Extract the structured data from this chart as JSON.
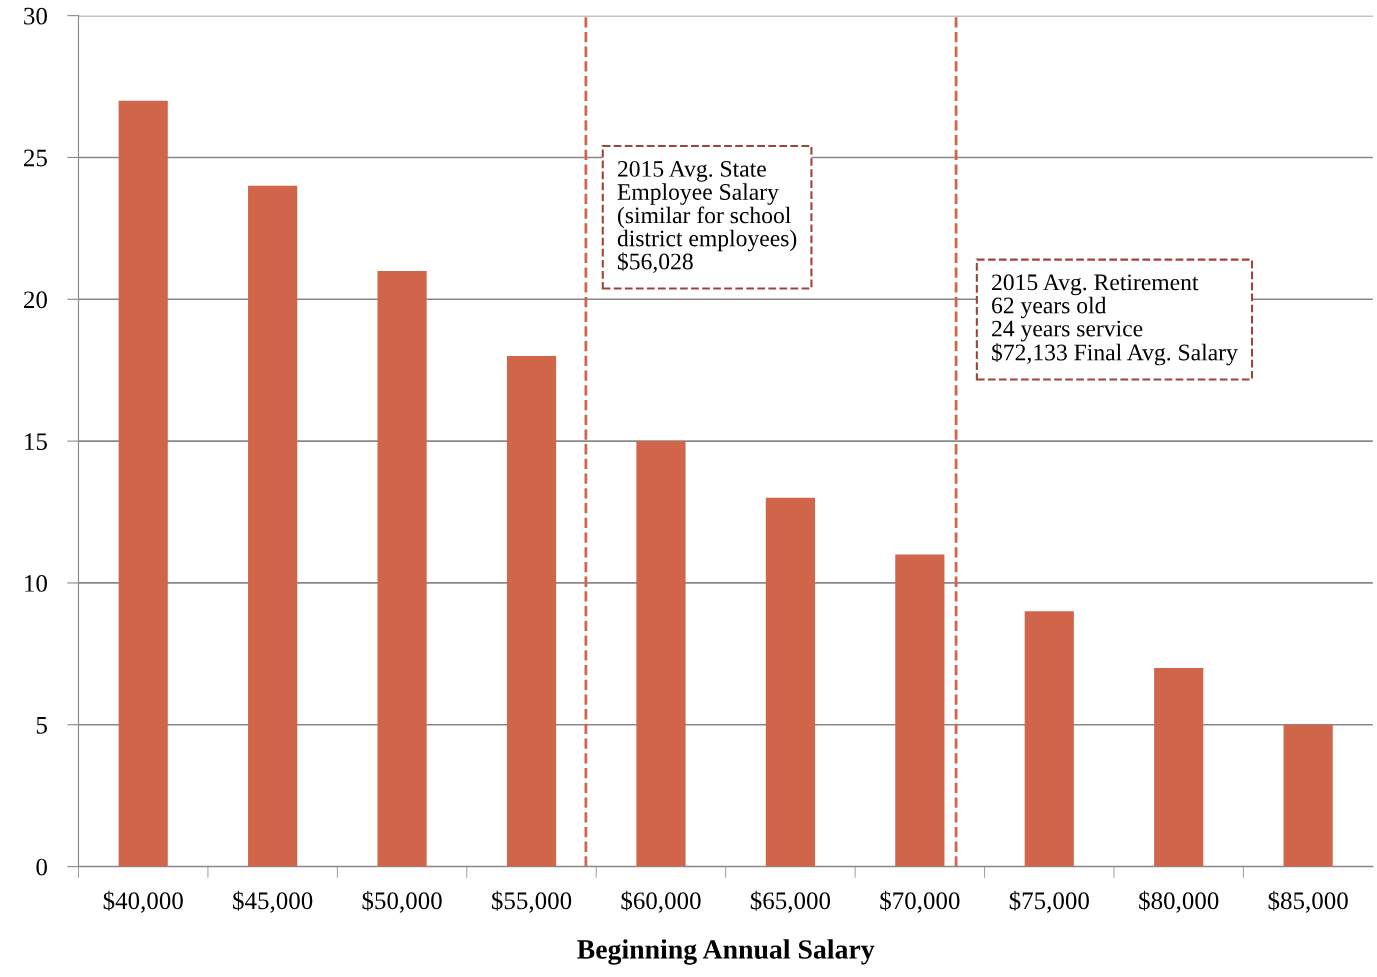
{
  "chart_data": {
    "type": "bar",
    "xlabel": "Beginning Annual Salary",
    "x": [
      40000,
      45000,
      50000,
      55000,
      60000,
      65000,
      70000,
      75000,
      80000,
      85000
    ],
    "values": [
      27,
      24,
      21,
      18,
      15,
      13,
      11,
      9,
      7,
      5
    ],
    "color": "#d1654a",
    "xlim": [
      37500,
      87500
    ],
    "xticks": [
      {
        "value": 40000,
        "label": "$40,000"
      },
      {
        "value": 45000,
        "label": "$45,000"
      },
      {
        "value": 50000,
        "label": "$50,000"
      },
      {
        "value": 55000,
        "label": "$55,000"
      },
      {
        "value": 60000,
        "label": "$60,000"
      },
      {
        "value": 65000,
        "label": "$65,000"
      },
      {
        "value": 70000,
        "label": "$70,000"
      },
      {
        "value": 75000,
        "label": "$75,000"
      },
      {
        "value": 80000,
        "label": "$80,000"
      },
      {
        "value": 85000,
        "label": "$85,000"
      },
      {
        "value": 37500,
        "label": null
      },
      {
        "value": 42500,
        "label": null
      },
      {
        "value": 47500,
        "label": null
      },
      {
        "value": 52500,
        "label": null
      },
      {
        "value": 57500,
        "label": null
      },
      {
        "value": 62500,
        "label": null
      },
      {
        "value": 67500,
        "label": null
      },
      {
        "value": 72500,
        "label": null
      },
      {
        "value": 77500,
        "label": null
      },
      {
        "value": 82500,
        "label": null
      }
    ],
    "ylim": [
      0,
      30
    ],
    "yticks": [
      0,
      5,
      10,
      15,
      20,
      25,
      30
    ],
    "grid": "y",
    "ref_lines": [
      {
        "axis": "x",
        "value": 57100,
        "color": "#d1654a",
        "line_style": "dashed"
      },
      {
        "axis": "x",
        "value": 71400,
        "color": "#d1654a",
        "line_style": "dashed"
      }
    ],
    "annotations": [
      "2015 Avg. State\nEmployee Salary\n(similar for school\ndistrict employees)\n$56,028",
      "2015 Avg. Retirement\n62 years old\n24 years service\n$72,133 Final Avg. Salary"
    ]
  }
}
